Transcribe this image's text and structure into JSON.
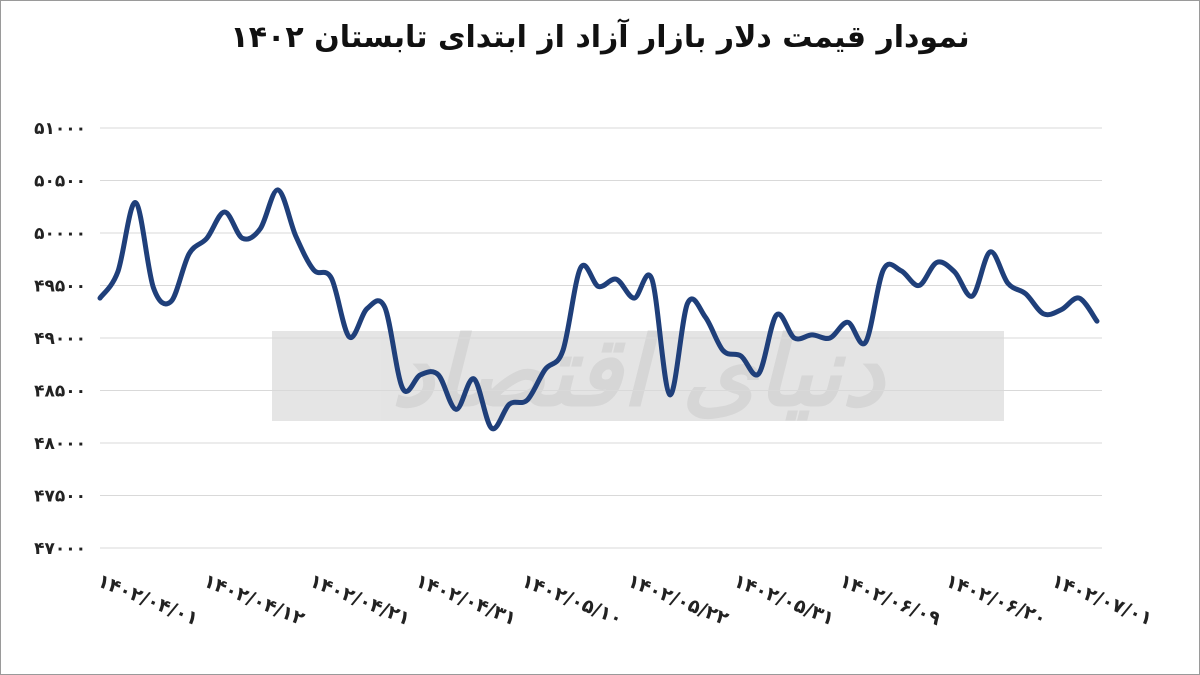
{
  "chart_data": {
    "type": "line",
    "title": "نمودار قیمت دلار بازار آزاد از ابتدای تابستان ۱۴۰۲",
    "xlabel": "",
    "ylabel": "",
    "ylim": [
      47000,
      51000
    ],
    "yticks": [
      "۴۷۰۰۰",
      "۴۷۵۰۰",
      "۴۸۰۰۰",
      "۴۸۵۰۰",
      "۴۹۰۰۰",
      "۴۹۵۰۰",
      "۵۰۰۰۰",
      "۵۰۵۰۰",
      "۵۱۰۰۰"
    ],
    "ytick_values": [
      47000,
      47500,
      48000,
      48500,
      49000,
      49500,
      50000,
      50500,
      51000
    ],
    "xtick_labels": [
      "۱۴۰۲/۰۴/۰۱",
      "۱۴۰۲/۰۴/۱۲",
      "۱۴۰۲/۰۴/۲۱",
      "۱۴۰۲/۰۴/۳۱",
      "۱۴۰۲/۰۵/۱۰",
      "۱۴۰۲/۰۵/۲۲",
      "۱۴۰۲/۰۵/۳۱",
      "۱۴۰۲/۰۶/۰۹",
      "۱۴۰۲/۰۶/۲۰",
      "۱۴۰۲/۰۷/۰۱"
    ],
    "grid": true,
    "legend": "none",
    "series": [
      {
        "color": "#1f3f7a",
        "values": [
          49380,
          49630,
          50290,
          49480,
          49350,
          49800,
          49950,
          50200,
          49950,
          50040,
          50410,
          49970,
          49650,
          49570,
          49010,
          49280,
          49290,
          48520,
          48650,
          48650,
          48320,
          48610,
          48140,
          48370,
          48410,
          48700,
          48880,
          49670,
          49490,
          49560,
          49380,
          49560,
          48460,
          49330,
          49200,
          48880,
          48830,
          48660,
          49220,
          49000,
          49030,
          49000,
          49150,
          48960,
          49650,
          49640,
          49500,
          49720,
          49630,
          49400,
          49820,
          49520,
          49420,
          49230,
          49270,
          49380,
          49160
        ]
      }
    ]
  },
  "watermark": {
    "text": "دنیای اقتصاد"
  }
}
